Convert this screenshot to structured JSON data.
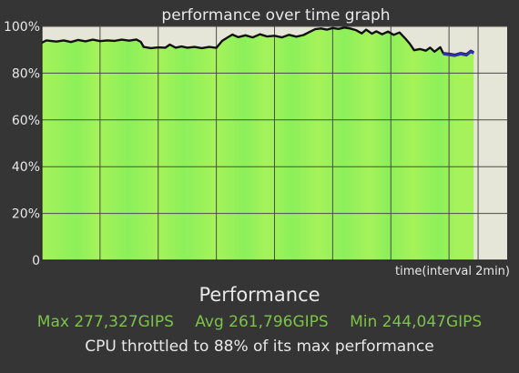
{
  "chart_data": {
    "type": "area",
    "title": "performance over time graph",
    "xlabel": "time(interval 2min)",
    "ylabel": "",
    "ylim": [
      0,
      100
    ],
    "yticks": [
      {
        "value": 0,
        "label": "0"
      },
      {
        "value": 20,
        "label": "20%"
      },
      {
        "value": 40,
        "label": "40%"
      },
      {
        "value": 60,
        "label": "60%"
      },
      {
        "value": 80,
        "label": "80%"
      },
      {
        "value": 100,
        "label": "100%"
      }
    ],
    "x_interval_minutes": 2,
    "x_gridlines_minutes": [
      4,
      8,
      12,
      16,
      20,
      24,
      28,
      30
    ],
    "x_max_minutes": 32,
    "data_end_minutes": 29.7,
    "series": [
      {
        "name": "",
        "line_color": "#111111",
        "points": [
          [
            0,
            93
          ],
          [
            0.3,
            94
          ],
          [
            1,
            93.5
          ],
          [
            1.5,
            94
          ],
          [
            2,
            93.3
          ],
          [
            2.5,
            94.2
          ],
          [
            3,
            93.6
          ],
          [
            3.5,
            94.3
          ],
          [
            4,
            93.7
          ],
          [
            4.5,
            94
          ],
          [
            5,
            93.8
          ],
          [
            5.5,
            94.3
          ],
          [
            6,
            93.9
          ],
          [
            6.5,
            94.4
          ],
          [
            6.8,
            93.4
          ],
          [
            7,
            91.2
          ],
          [
            7.5,
            90.7
          ],
          [
            8,
            91
          ],
          [
            8.5,
            90.9
          ],
          [
            8.8,
            92.2
          ],
          [
            9.2,
            90.9
          ],
          [
            9.6,
            91.4
          ],
          [
            10,
            90.9
          ],
          [
            10.5,
            91.2
          ],
          [
            11,
            90.7
          ],
          [
            11.5,
            91.2
          ],
          [
            12,
            90.8
          ],
          [
            12.4,
            93.8
          ],
          [
            12.7,
            95
          ],
          [
            13.1,
            96.5
          ],
          [
            13.5,
            95.4
          ],
          [
            14,
            96.2
          ],
          [
            14.5,
            95.3
          ],
          [
            15,
            96.6
          ],
          [
            15.5,
            95.7
          ],
          [
            16,
            96
          ],
          [
            16.5,
            95.3
          ],
          [
            17,
            96.4
          ],
          [
            17.5,
            95.6
          ],
          [
            18,
            96.3
          ],
          [
            18.4,
            97.6
          ],
          [
            18.8,
            98.8
          ],
          [
            19.2,
            99.1
          ],
          [
            19.6,
            98.6
          ],
          [
            20,
            99.3
          ],
          [
            20.4,
            98.9
          ],
          [
            20.8,
            99.5
          ],
          [
            21.2,
            99.1
          ],
          [
            21.6,
            98.4
          ],
          [
            22,
            97
          ],
          [
            22.3,
            98.6
          ],
          [
            22.7,
            96.9
          ],
          [
            23,
            97.9
          ],
          [
            23.4,
            96.6
          ],
          [
            23.8,
            97.8
          ],
          [
            24.2,
            96.4
          ],
          [
            24.6,
            97.4
          ],
          [
            25,
            94.8
          ],
          [
            25.3,
            92.6
          ],
          [
            25.6,
            89.8
          ],
          [
            26,
            90.3
          ],
          [
            26.4,
            89.6
          ],
          [
            26.7,
            90.9
          ],
          [
            27,
            89.2
          ],
          [
            27.4,
            91.1
          ],
          [
            27.6,
            88.6
          ],
          [
            28,
            88.3
          ],
          [
            28.4,
            87.9
          ],
          [
            28.8,
            88.6
          ],
          [
            29.2,
            88.1
          ],
          [
            29.5,
            89.6
          ],
          [
            29.7,
            88.9
          ]
        ]
      }
    ]
  },
  "summary": {
    "heading": "Performance",
    "max": "Max 277,327GIPS",
    "avg": "Avg 261,796GIPS",
    "min": "Min 244,047GIPS",
    "throttle": "CPU throttled to 88% of its max performance"
  },
  "colors": {
    "page_background": "#353535",
    "plot_background": "#e6e6d8",
    "area_green": "#8cf05a",
    "area_green_light": "#a6f25a",
    "throttle_line_blue": "#3030b0",
    "stats_text": "#7dc24a",
    "summary_text": "#e8e8e8"
  }
}
